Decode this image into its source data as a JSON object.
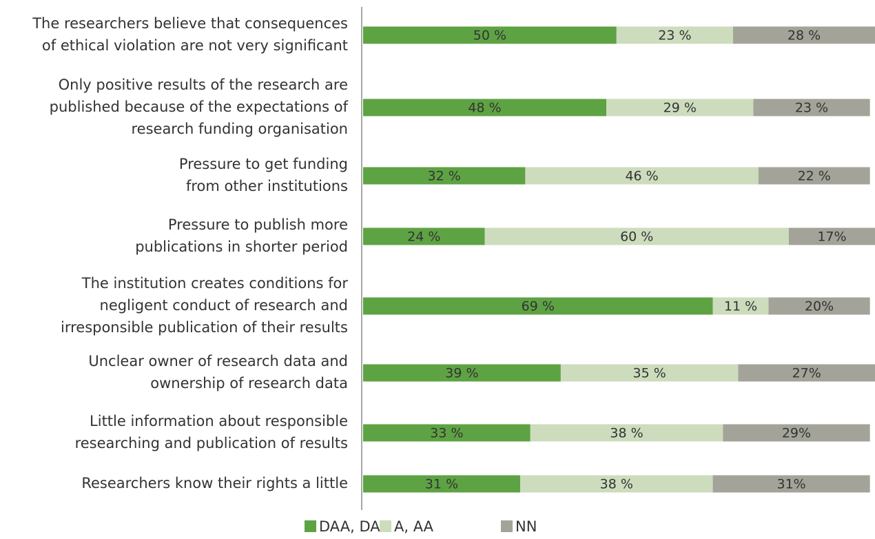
{
  "chart_data": {
    "type": "stacked-barh",
    "categories": [
      [
        "The researchers believe that consequences",
        "of ethical violation are not very significant"
      ],
      [
        "Only positive results of the research are",
        "published because of the expectations of",
        "research funding organisation"
      ],
      [
        "Pressure to get funding",
        "from other institutions"
      ],
      [
        "Pressure to publish more",
        "publications in shorter period"
      ],
      [
        "The institution creates conditions for",
        "negligent conduct of research and",
        "irresponsible publication of their results"
      ],
      [
        "Unclear owner of research data and",
        "ownership of research data"
      ],
      [
        "Little information about responsible",
        "researching and publication of results"
      ],
      [
        "Researchers know their rights a little"
      ]
    ],
    "series": [
      {
        "name": "DAA, DA",
        "color": "#5ea343",
        "values": [
          50,
          48,
          32,
          24,
          69,
          39,
          33,
          31
        ],
        "value_labels": [
          "50 %",
          "48 %",
          "32 %",
          "24 %",
          "69 %",
          "39 %",
          "33 %",
          "31 %"
        ]
      },
      {
        "name": "A, AA",
        "color": "#cddcbd",
        "values": [
          23,
          29,
          46,
          60,
          11,
          35,
          38,
          38
        ],
        "value_labels": [
          "23 %",
          "29 %",
          "46 %",
          "60 %",
          "11 %",
          "35 %",
          "38 %",
          "38 %"
        ]
      },
      {
        "name": "NN",
        "color": "#a3a399",
        "values": [
          28,
          23,
          22,
          17,
          20,
          27,
          29,
          31
        ],
        "value_labels": [
          "28 %",
          "23 %",
          "22 %",
          "17%",
          "20%",
          "27%",
          "29%",
          "31%"
        ]
      }
    ],
    "xlim": [
      0,
      101
    ],
    "legend": "bottom"
  }
}
